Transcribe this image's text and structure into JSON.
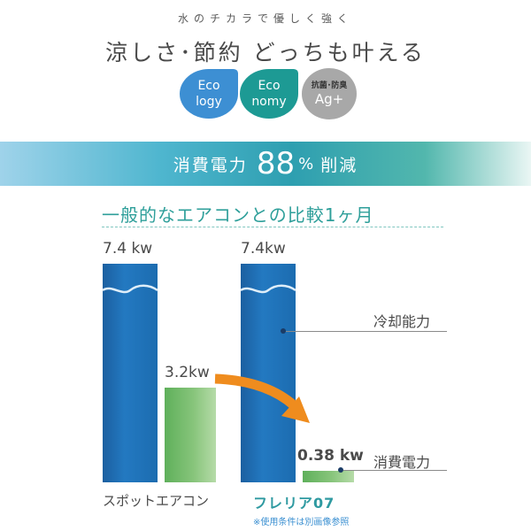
{
  "header": {
    "kicker": "水のチカラで優しく強く",
    "headline": "涼しさ･節約 どっちも叶える"
  },
  "badges": [
    {
      "line1": "Eco",
      "line2": "logy",
      "color": "#3d8fd3"
    },
    {
      "line1": "Eco",
      "line2": "nomy",
      "color": "#1d9a94"
    },
    {
      "line1": "抗菌･防臭",
      "line2": "Ag+",
      "color": "#a8a8a8"
    }
  ],
  "banner": {
    "label": "消費電力",
    "value": "88",
    "unit": "%",
    "suffix": "削減"
  },
  "comparison": {
    "title": "一般的なエアコンとの比較1ヶ月"
  },
  "chart_data": {
    "type": "bar",
    "categories": [
      "スポットエアコン",
      "フレリア07"
    ],
    "series": [
      {
        "name": "冷却能力",
        "values": [
          7.4,
          7.4
        ],
        "labels": [
          "7.4 kw",
          "7.4kw"
        ],
        "color": "#1f6fb4"
      },
      {
        "name": "消費電力",
        "values": [
          3.2,
          0.38
        ],
        "labels": [
          "3.2kw",
          "0.38 kw"
        ],
        "color": "#6fb866"
      }
    ],
    "ylim": [
      0,
      7.4
    ],
    "legend": [
      "冷却能力",
      "消費電力"
    ]
  },
  "footnote": "※使用条件は別画像参照",
  "colors": {
    "accent": "#2e9f9a",
    "arrow": "#ef8c1e"
  }
}
